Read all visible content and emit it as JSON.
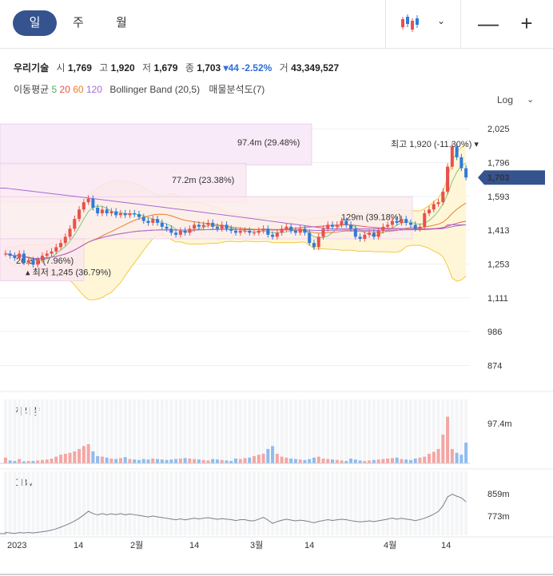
{
  "periods": {
    "day": "일",
    "week": "주",
    "month": "월"
  },
  "controls": {
    "zoom_out": "—",
    "zoom_in": "+",
    "chevron": "⌄"
  },
  "stock": {
    "name": "우리기술",
    "open_label": "시",
    "open": "1,769",
    "high_label": "고",
    "high": "1,920",
    "low_label": "저",
    "low": "1,679",
    "close_label": "종",
    "close": "1,703",
    "change": "▾44",
    "change_pct": "-2.52%",
    "volume_label": "거",
    "volume": "43,349,527"
  },
  "indicators": {
    "ma_label": "이동평균",
    "ma5": "5",
    "ma20": "20",
    "ma60": "60",
    "ma120": "120",
    "bb": "Bollinger Band (20,5)",
    "vp": "매물분석도(7)"
  },
  "scale": {
    "log": "Log"
  },
  "price_axis": [
    "2,025",
    "1,796",
    "1,593",
    "1,413",
    "1,253",
    "1,111",
    "986",
    "874"
  ],
  "current_price": "1,703",
  "max_label": "최고 1,920 (-11.30%) ▾",
  "min_label": "▴ 최저 1,245 (36.79%)",
  "vp_labels": [
    "97.4m (29.48%)",
    "77.2m (23.38%)",
    "129m (39.18%)",
    "26.3m (7.96%)"
  ],
  "volume_panel": {
    "label": "거래량",
    "axis": "97.4m"
  },
  "obv_panel": {
    "label": "OBV",
    "axis_hi": "859m",
    "axis_lo": "773m"
  },
  "x_labels": [
    "2023",
    "14",
    "2월",
    "14",
    "3월",
    "14",
    "4월",
    "14"
  ],
  "colors": {
    "up": "#e8514b",
    "down": "#2f7bd6",
    "accent": "#35538f",
    "bb_line": "#f5c842",
    "ma5": "#7fc97f",
    "ma20": "#e8802a",
    "ma120": "#a86ad6"
  },
  "chart_data": {
    "type": "candlestick",
    "scale": "log",
    "ylim": [
      820,
      2150
    ],
    "price_ticks": [
      2025,
      1796,
      1593,
      1413,
      1253,
      1111,
      986,
      874
    ],
    "last_close": 1703,
    "high": 1920,
    "low": 1245,
    "closes": [
      1300,
      1290,
      1280,
      1300,
      1260,
      1270,
      1250,
      1270,
      1290,
      1300,
      1310,
      1330,
      1350,
      1380,
      1420,
      1470,
      1520,
      1560,
      1580,
      1530,
      1500,
      1520,
      1500,
      1510,
      1490,
      1500,
      1490,
      1500,
      1495,
      1480,
      1460,
      1450,
      1470,
      1450,
      1430,
      1420,
      1400,
      1390,
      1410,
      1400,
      1420,
      1440,
      1430,
      1440,
      1450,
      1430,
      1420,
      1440,
      1420,
      1410,
      1400,
      1410,
      1410,
      1400,
      1400,
      1410,
      1420,
      1390,
      1380,
      1400,
      1420,
      1430,
      1410,
      1400,
      1420,
      1400,
      1350,
      1330,
      1380,
      1420,
      1440,
      1430,
      1440,
      1460,
      1440,
      1420,
      1380,
      1370,
      1390,
      1400,
      1380,
      1410,
      1430,
      1440,
      1460,
      1450,
      1470,
      1450,
      1440,
      1420,
      1430,
      1500,
      1520,
      1550,
      1560,
      1620,
      1770,
      1900,
      1830,
      1760,
      1703
    ],
    "volume_values": [
      12,
      6,
      5,
      9,
      4,
      5,
      5,
      6,
      7,
      8,
      10,
      14,
      18,
      20,
      22,
      25,
      30,
      36,
      40,
      25,
      15,
      14,
      12,
      10,
      9,
      11,
      13,
      9,
      8,
      7,
      9,
      8,
      10,
      9,
      8,
      7,
      8,
      9,
      10,
      11,
      10,
      9,
      8,
      7,
      6,
      9,
      8,
      7,
      6,
      5,
      10,
      9,
      11,
      12,
      15,
      18,
      20,
      30,
      36,
      20,
      14,
      12,
      10,
      9,
      8,
      7,
      9,
      12,
      14,
      10,
      9,
      8,
      7,
      6,
      5,
      10,
      8,
      6,
      5,
      6,
      7,
      8,
      9,
      10,
      11,
      12,
      9,
      8,
      7,
      10,
      12,
      14,
      20,
      24,
      30,
      60,
      97.4,
      30,
      22,
      18,
      43.3
    ],
    "volume_axis": "97.4m",
    "obv_ticks": [
      859,
      773
    ]
  }
}
